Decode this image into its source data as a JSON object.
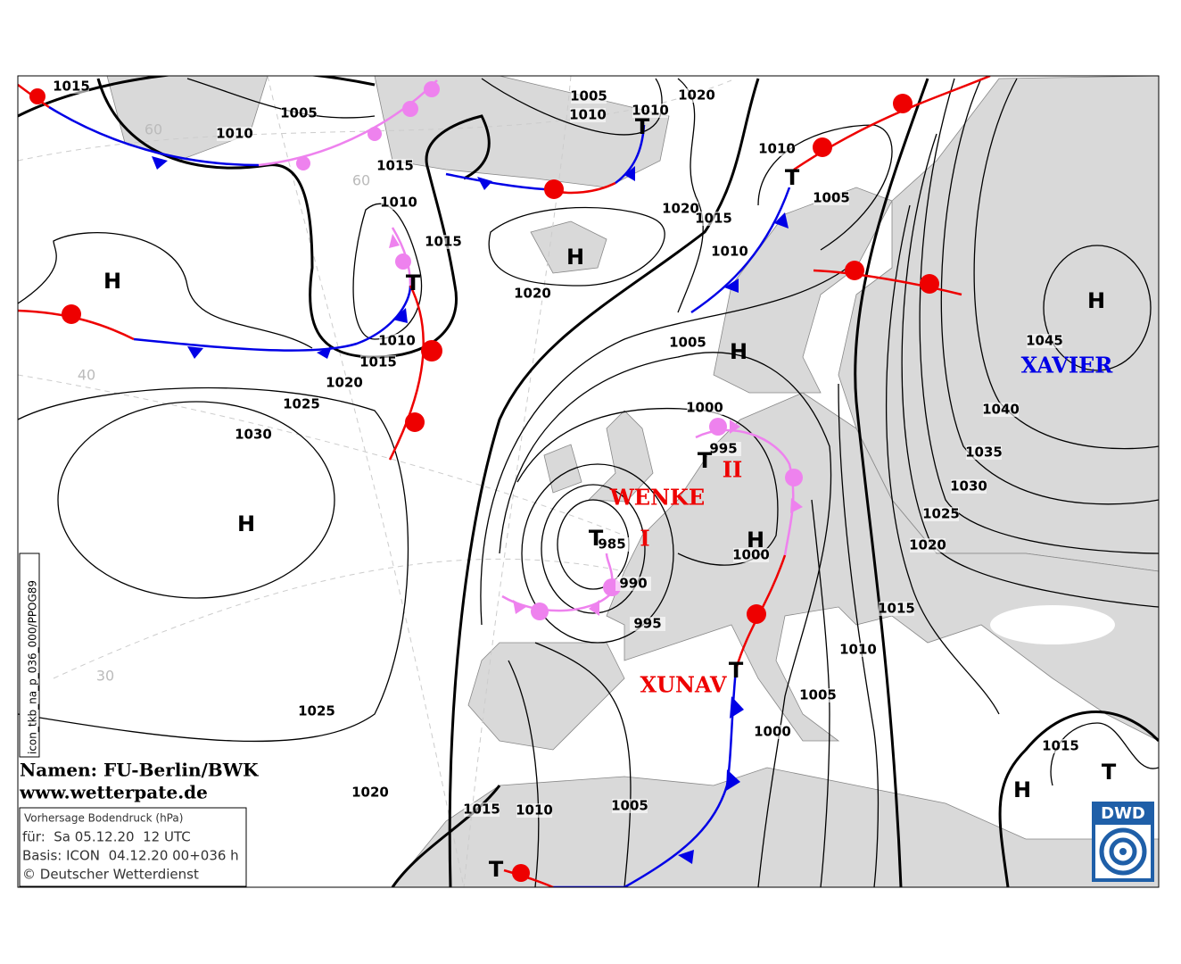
{
  "map": {
    "isobar_labels": [
      1015,
      1005,
      1010,
      1005,
      1010,
      1010,
      1020,
      1015,
      1010,
      1015,
      1010,
      1005,
      1020,
      1015,
      1010,
      1020,
      1010,
      1015,
      1005,
      1020,
      1025,
      1030,
      1000,
      995,
      985,
      1000,
      990,
      995,
      1045,
      1040,
      1035,
      1030,
      1025,
      1020,
      1015,
      1010,
      1005,
      1000,
      1025,
      1020,
      1015,
      1010,
      1005,
      1015
    ],
    "pressure_centers": [
      "H",
      "H",
      "H",
      "H",
      "H",
      "H",
      "H",
      "T",
      "T",
      "T",
      "T",
      "T",
      "T",
      "T",
      "T"
    ],
    "storm_names": [
      "WENKE",
      "I",
      "II",
      "XUNAV",
      "XAVIER"
    ],
    "latitude_labels": [
      60,
      60,
      40,
      30
    ],
    "credits": {
      "names": "Namen: FU-Berlin/BWK",
      "website": "www.wetterpate.de"
    },
    "info_box": {
      "title": "Vorhersage Bodendruck (hPa)",
      "valid": "für:  Sa 05.12.20  12 UTC",
      "basis": "Basis: ICON  04.12.20 00+036 h",
      "copyright": "© Deutscher Wetterdienst"
    },
    "run_id": "icon_tkb_na_p_036_000/PPOG89",
    "logo": "DWD"
  }
}
